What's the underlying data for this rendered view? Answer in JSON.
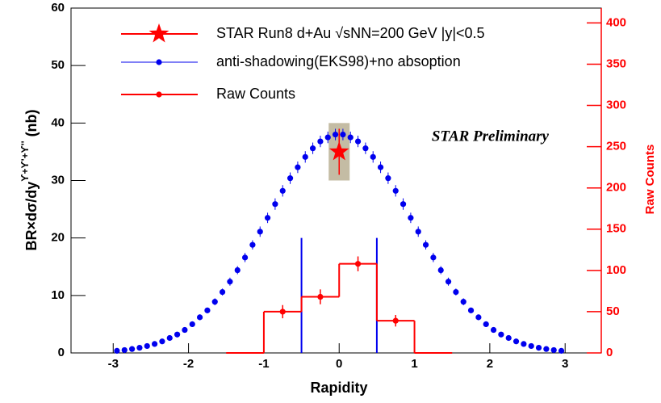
{
  "chart_data": {
    "type": "scatter",
    "x_label": "Rapidity",
    "y_label": "BR×dσ/dy",
    "y_label_sup": "ϒ+ϒ'+ϒ''",
    "y_label_unit": " (nb)",
    "y2_label": "Raw Counts",
    "annotation": "STAR Preliminary",
    "xlim": [
      -3.56,
      3.48
    ],
    "xticks": [
      -3,
      -2,
      -1,
      0,
      1,
      2,
      3
    ],
    "ylim": [
      0,
      60
    ],
    "yticks": [
      0,
      10,
      20,
      30,
      40,
      50,
      60
    ],
    "y2lim": [
      0,
      418
    ],
    "y2ticks": [
      0,
      50,
      100,
      150,
      200,
      250,
      300,
      350,
      400
    ],
    "y2_color": "#ff0000",
    "legend": "top-left",
    "series": [
      {
        "name": "STAR Run8 d+Au √sNN=200 GeV  |y|<0.5",
        "color": "#ff0000",
        "marker": "star",
        "x": [
          0
        ],
        "values": [
          35
        ],
        "errors": [
          4
        ],
        "sys_low": [
          30
        ],
        "sys_high": [
          40
        ],
        "sys_color": "#c4bca4"
      },
      {
        "name": "anti-shadowing(EKS98)+no absoption",
        "color": "#0000ee",
        "marker": "circle",
        "x": [
          -2.95,
          -2.85,
          -2.75,
          -2.65,
          -2.55,
          -2.45,
          -2.35,
          -2.25,
          -2.15,
          -2.05,
          -1.95,
          -1.85,
          -1.75,
          -1.65,
          -1.55,
          -1.45,
          -1.35,
          -1.25,
          -1.15,
          -1.05,
          -0.95,
          -0.85,
          -0.75,
          -0.65,
          -0.55,
          -0.45,
          -0.35,
          -0.25,
          -0.15,
          -0.05,
          0.05,
          0.15,
          0.25,
          0.35,
          0.45,
          0.55,
          0.65,
          0.75,
          0.85,
          0.95,
          1.05,
          1.15,
          1.25,
          1.35,
          1.45,
          1.55,
          1.65,
          1.75,
          1.85,
          1.95,
          2.05,
          2.15,
          2.25,
          2.35,
          2.45,
          2.55,
          2.65,
          2.75,
          2.85,
          2.95
        ],
        "values": [
          0.37,
          0.5,
          0.68,
          0.9,
          1.2,
          1.56,
          2.0,
          2.6,
          3.2,
          4.0,
          5.0,
          6.2,
          7.4,
          8.9,
          10.6,
          12.4,
          14.4,
          16.6,
          18.8,
          21.1,
          23.5,
          25.9,
          28.2,
          30.4,
          32.3,
          34.1,
          35.6,
          36.8,
          37.5,
          38.0,
          38.0,
          37.5,
          36.8,
          35.6,
          34.1,
          32.3,
          30.4,
          28.2,
          25.9,
          23.5,
          21.1,
          18.8,
          16.6,
          14.4,
          12.4,
          10.6,
          8.9,
          7.4,
          6.2,
          5.0,
          4.0,
          3.2,
          2.6,
          2.0,
          1.56,
          1.2,
          0.9,
          0.68,
          0.5,
          0.37
        ],
        "errors": [
          0.2,
          0.2,
          0.2,
          0.2,
          0.2,
          0.2,
          0.3,
          0.3,
          0.3,
          0.4,
          0.5,
          0.5,
          0.5,
          0.6,
          0.6,
          0.7,
          0.7,
          0.8,
          0.8,
          0.9,
          0.9,
          1.0,
          1.0,
          1.0,
          1.0,
          1.0,
          1.0,
          1.0,
          1.0,
          1.0,
          1.0,
          1.0,
          1.0,
          1.0,
          1.0,
          1.0,
          1.0,
          1.0,
          1.0,
          0.9,
          0.9,
          0.8,
          0.8,
          0.7,
          0.7,
          0.6,
          0.6,
          0.5,
          0.5,
          0.5,
          0.4,
          0.3,
          0.3,
          0.3,
          0.2,
          0.2,
          0.2,
          0.2,
          0.2,
          0.2
        ]
      },
      {
        "name": "Raw Counts",
        "color": "#ff0000",
        "marker": "hist",
        "axis": "y2",
        "bins": [
          -1.5,
          -1,
          -0.5,
          0,
          0.5,
          1,
          1.5
        ],
        "values": [
          0,
          50,
          68,
          108,
          39,
          0
        ],
        "errors": [
          null,
          8,
          9,
          9,
          7,
          null
        ]
      }
    ],
    "vlines": {
      "color": "#0000ee",
      "x": [
        -0.5,
        0.5
      ],
      "ymax": [
        20,
        20
      ]
    }
  }
}
